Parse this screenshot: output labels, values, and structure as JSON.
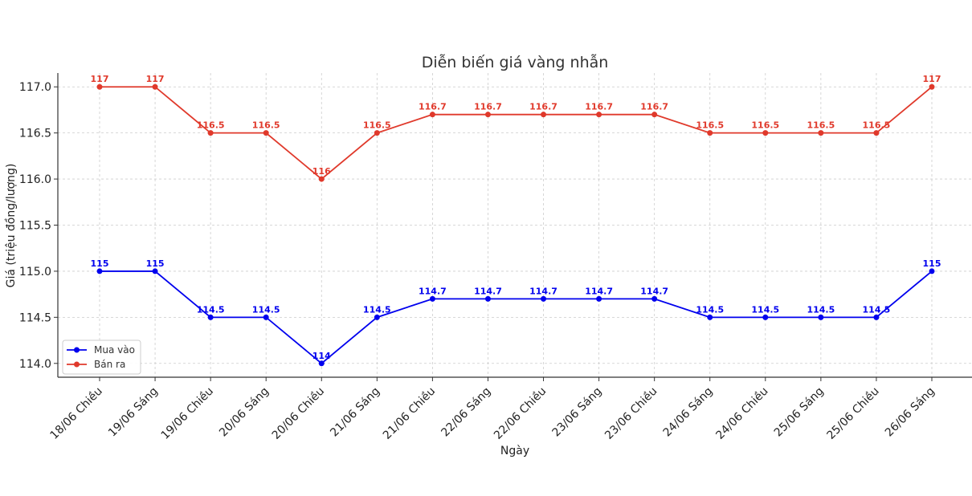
{
  "chart_data": {
    "type": "line",
    "title": "Diễn biến giá vàng nhẫn",
    "xlabel": "Ngày",
    "ylabel": "Giá (triệu đồng/lượng)",
    "ylim": [
      113.85,
      117.15
    ],
    "yticks": [
      "114.0",
      "114.5",
      "115.0",
      "115.5",
      "116.0",
      "116.5",
      "117.0"
    ],
    "ytick_values": [
      114.0,
      114.5,
      115.0,
      115.5,
      116.0,
      116.5,
      117.0
    ],
    "grid": true,
    "legend_position": "bottom-left",
    "categories": [
      "18/06 Chiều",
      "19/06 Sáng",
      "19/06 Chiều",
      "20/06 Sáng",
      "20/06 Chiều",
      "21/06 Sáng",
      "21/06 Chiều",
      "22/06 Sáng",
      "22/06 Chiều",
      "23/06 Sáng",
      "23/06 Chiều",
      "24/06 Sáng",
      "24/06 Chiều",
      "25/06 Sáng",
      "25/06 Chiều",
      "26/06 Sáng"
    ],
    "series": [
      {
        "name": "Mua vào",
        "color": "#0000ee",
        "values": [
          115,
          115,
          114.5,
          114.5,
          114,
          114.5,
          114.7,
          114.7,
          114.7,
          114.7,
          114.7,
          114.5,
          114.5,
          114.5,
          114.5,
          115
        ],
        "labels": [
          "115",
          "115",
          "114.5",
          "114.5",
          "114",
          "114.5",
          "114.7",
          "114.7",
          "114.7",
          "114.7",
          "114.7",
          "114.5",
          "114.5",
          "114.5",
          "114.5",
          "115"
        ]
      },
      {
        "name": "Bán ra",
        "color": "#e0392b",
        "values": [
          117,
          117,
          116.5,
          116.5,
          116,
          116.5,
          116.7,
          116.7,
          116.7,
          116.7,
          116.7,
          116.5,
          116.5,
          116.5,
          116.5,
          117
        ],
        "labels": [
          "117",
          "117",
          "116.5",
          "116.5",
          "116",
          "116.5",
          "116.7",
          "116.7",
          "116.7",
          "116.7",
          "116.7",
          "116.5",
          "116.5",
          "116.5",
          "116.5",
          "117"
        ]
      }
    ]
  }
}
